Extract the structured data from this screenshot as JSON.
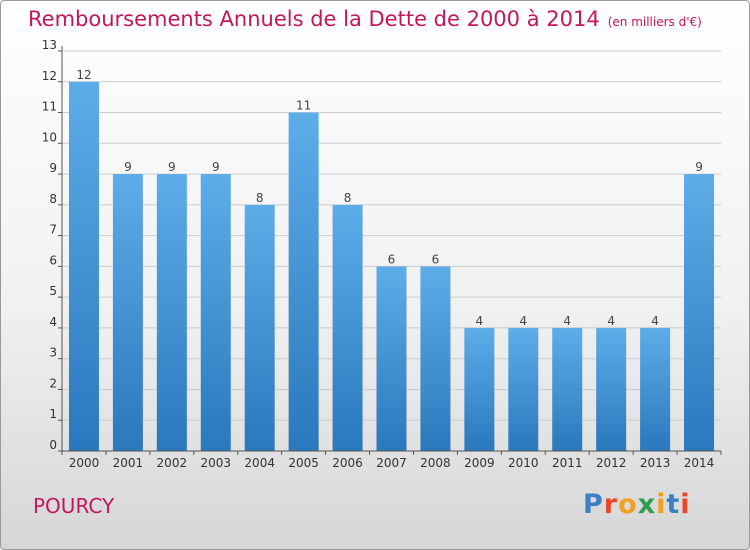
{
  "title": "Remboursements Annuels de la Dette de 2000 à 2014",
  "unit_label": "(en milliers d'€)",
  "place": "POURCY",
  "logo": {
    "text": "Proxiti",
    "colors": [
      "#3a7fc4",
      "#e8472b",
      "#f0a020",
      "#2e9e4f",
      "#f0a020",
      "#3a7fc4",
      "#e8472b"
    ]
  },
  "colors": {
    "bar_top": "#5dade8",
    "bar_bottom": "#2a78bd",
    "title": "#c2185b",
    "grid": "#cccccc"
  },
  "chart_data": {
    "type": "bar",
    "categories": [
      "2000",
      "2001",
      "2002",
      "2003",
      "2004",
      "2005",
      "2006",
      "2007",
      "2008",
      "2009",
      "2010",
      "2011",
      "2012",
      "2013",
      "2014"
    ],
    "values": [
      12,
      9,
      9,
      9,
      8,
      11,
      8,
      6,
      6,
      4,
      4,
      4,
      4,
      4,
      9
    ],
    "yticks": [
      0,
      1,
      2,
      3,
      4,
      5,
      6,
      7,
      8,
      9,
      10,
      11,
      12,
      13
    ],
    "ylim": [
      0,
      13
    ],
    "grid": true,
    "data_labels": true
  }
}
